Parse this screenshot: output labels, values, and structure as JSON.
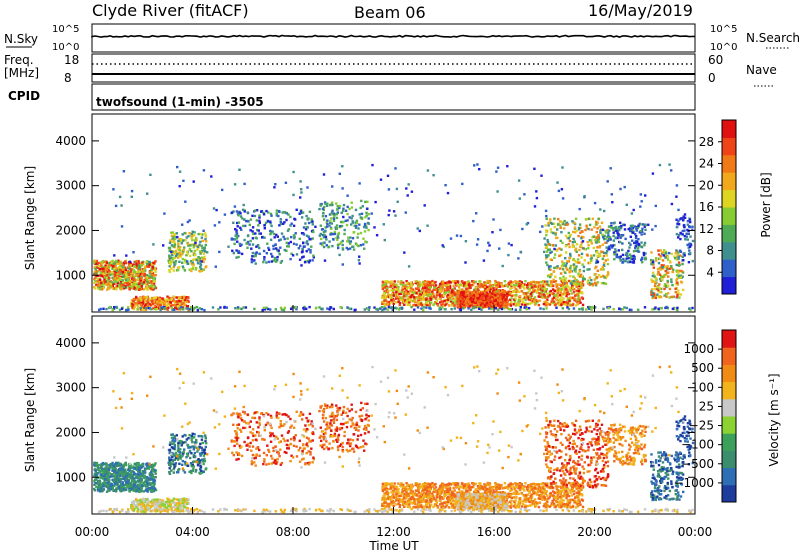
{
  "header": {
    "station": "Clyde River (fitACF)",
    "beam": "Beam 06",
    "date": "16/May/2019"
  },
  "top_panels": {
    "nsky_label": "N.Sky",
    "nsky_ticks": [
      "10^5",
      "10^0"
    ],
    "nsearch_label": "N.Search",
    "nsearch_ticks": [
      "10^5",
      "10^0"
    ],
    "freq_label": "Freq.",
    "freq_unit": "[MHz]",
    "freq_ticks": [
      "18",
      "8"
    ],
    "nave_label": "Nave",
    "nave_ticks": [
      "60",
      "0"
    ],
    "cpid_label": "CPID",
    "cpid_text": "twofsound (1-min) -3505"
  },
  "chart_data": [
    {
      "type": "heatmap",
      "name": "power",
      "xlabel": "",
      "ylabel": "Slant Range [km]",
      "x_ticks": [
        "00:00",
        "04:00",
        "08:00",
        "12:00",
        "16:00",
        "20:00",
        "00:00"
      ],
      "y_ticks": [
        "1000",
        "2000",
        "3000",
        "4000"
      ],
      "xlim": [
        0,
        24
      ],
      "ylim": [
        180,
        4600
      ],
      "colorbar_label": "Power [dB]",
      "colorbar_ticks": [
        "4",
        "8",
        "12",
        "16",
        "20",
        "24",
        "28"
      ],
      "colors": [
        "#1f1fd8",
        "#2f5fc8",
        "#3f8f8f",
        "#4faa55",
        "#88cc33",
        "#ddd522",
        "#f2a81c",
        "#f07a18",
        "#ee4418",
        "#e01010"
      ]
    },
    {
      "type": "heatmap",
      "name": "velocity",
      "xlabel": "Time UT",
      "ylabel": "Slant Range [km]",
      "x_ticks": [
        "00:00",
        "04:00",
        "08:00",
        "12:00",
        "16:00",
        "20:00",
        "00:00"
      ],
      "y_ticks": [
        "1000",
        "2000",
        "3000",
        "4000"
      ],
      "xlim": [
        0,
        24
      ],
      "ylim": [
        180,
        4600
      ],
      "colorbar_label": "Velocity [m s⁻¹]",
      "colorbar_ticks": [
        "1000",
        "500",
        "100",
        "25",
        "−25",
        "−100",
        "−500",
        "−1000"
      ],
      "colors": [
        "#1e3c9c",
        "#2d6eb4",
        "#3c8c6e",
        "#3ca05a",
        "#8cd232",
        "#c8c8c8",
        "#f2b41c",
        "#f08c14",
        "#f0641e",
        "#e01414"
      ]
    }
  ]
}
